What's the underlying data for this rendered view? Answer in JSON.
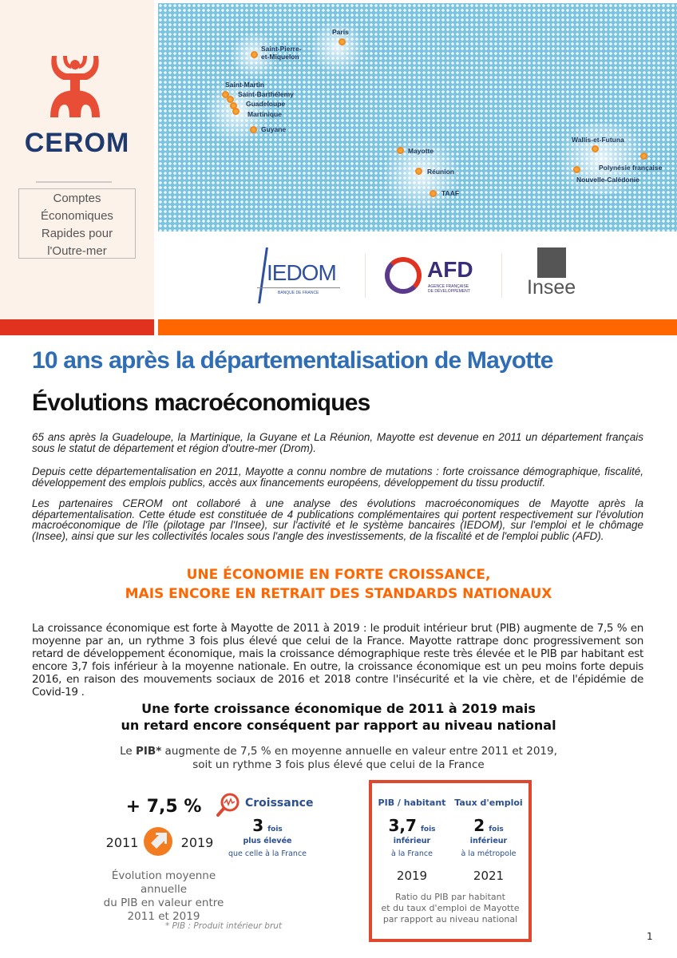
{
  "header": {
    "brand": "CEROM",
    "tagline_lines": [
      "Comptes",
      "Économiques",
      "Rapides pour",
      "l'Outre-mer"
    ],
    "map_labels": {
      "paris": "Paris",
      "spm": "Saint-Pierre-\net-Miquelon",
      "saint_martin": "Saint-Martin",
      "saint_barth": "Saint-Barthélemy",
      "guadeloupe": "Guadeloupe",
      "martinique": "Martinique",
      "guyane": "Guyane",
      "mayotte": "Mayotte",
      "reunion": "Réunion",
      "taaf": "TAAF",
      "wallis": "Wallis-et-Futuna",
      "polynesie": "Polynésie française",
      "caledonie": "Nouvelle-Calédonie"
    },
    "partners": {
      "iedom": "IEDOM",
      "iedom_sub": "BANQUE DE FRANCE",
      "afd": "AFD",
      "afd_sub1": "AGENCE FRANÇAISE",
      "afd_sub2": "DE DÉVELOPPEMENT",
      "insee": "Insee"
    },
    "colors": {
      "red": "#e0321e",
      "orange": "#ff6600",
      "navy": "#1f3a6e",
      "map": "#7cc3e0"
    }
  },
  "title": "10 ans après la départementalisation de Mayotte",
  "subtitle": "Évolutions macroéconomiques",
  "intro": [
    "65 ans après la Guadeloupe, la Martinique, la Guyane et La Réunion, Mayotte est devenue en 2011 un département français sous le statut de département et région d'outre-mer (Drom).",
    "Depuis cette départementalisation en 2011, Mayotte a connu nombre de mutations : forte croissance démographique, fiscalité, développement des emplois publics, accès aux financements européens, développement du tissu productif.",
    "Les partenaires CEROM ont collaboré à une analyse des évolutions macroéconomiques de Mayotte après la départementalisation. Cette étude est constituée de 4 publications complémentaires qui portent respectivement sur l'évolution macroéconomique de l'île (pilotage par l'Insee), sur l'activité et le système bancaires (IEDOM), sur l'emploi et le chômage (Insee), ainsi que sur les collectivités locales sous l'angle des investissements, de la fiscalité et de l'emploi public (AFD)."
  ],
  "section_heading": [
    "UNE ÉCONOMIE EN FORTE CROISSANCE,",
    "MAIS ENCORE EN RETRAIT DES STANDARDS NATIONAUX"
  ],
  "section_paragraph": "La croissance économique est forte à Mayotte de 2011 à 2019 : le produit intérieur brut (PIB) augmente de 7,5 % en moyenne par an, un rythme 3 fois plus élevé que celui de la France. Mayotte rattrape donc progressivement son retard de développement économique, mais la croissance démographique reste très élevée et le PIB par habitant est encore 3,7 fois inférieur à la moyenne nationale. En outre, la croissance économique est un peu moins forte depuis 2016, en raison des mouvements sociaux de 2016 et 2018 contre l'insécurité et la vie chère, et de l'épidémie de Covid-19 .",
  "infographic": {
    "heading": [
      "Une forte croissance économique de 2011 à 2019 mais",
      "un retard encore conséquent par rapport au niveau national"
    ],
    "lead_pre": "Le ",
    "lead_bold": "PIB*",
    "lead_post": " augmente de 7,5 % en moyenne annuelle en valeur entre 2011 et 2019,",
    "lead_line2": "soit un rythme 3 fois plus élevé que celui de la France",
    "growth_value": "+ 7,5 %",
    "year_start": "2011",
    "year_end": "2019",
    "growth_caption": [
      "Évolution moyenne annuelle",
      "du PIB en valeur entre 2011 et 2019"
    ],
    "croissance_label": "Croissance",
    "croissance_value": "3",
    "fois": "fois",
    "croissance_sub1": "plus élevée",
    "croissance_sub2": "que celle à la France",
    "footnote": "*  PIB : Produit intérieur brut",
    "box": {
      "col1": {
        "label": "PIB / habitant",
        "value": "3,7",
        "unit": "fois",
        "sub1": "inférieur",
        "sub2": "à la France",
        "year": "2019"
      },
      "col2": {
        "label": "Taux d'emploi",
        "value": "2",
        "unit": "fois",
        "sub1": "inférieur",
        "sub2": "à la métropole",
        "year": "2021"
      },
      "caption": [
        "Ratio du PIB par habitant",
        "et du taux d'emploi de Mayotte",
        "par rapport au niveau national"
      ]
    }
  },
  "page_number": "1"
}
